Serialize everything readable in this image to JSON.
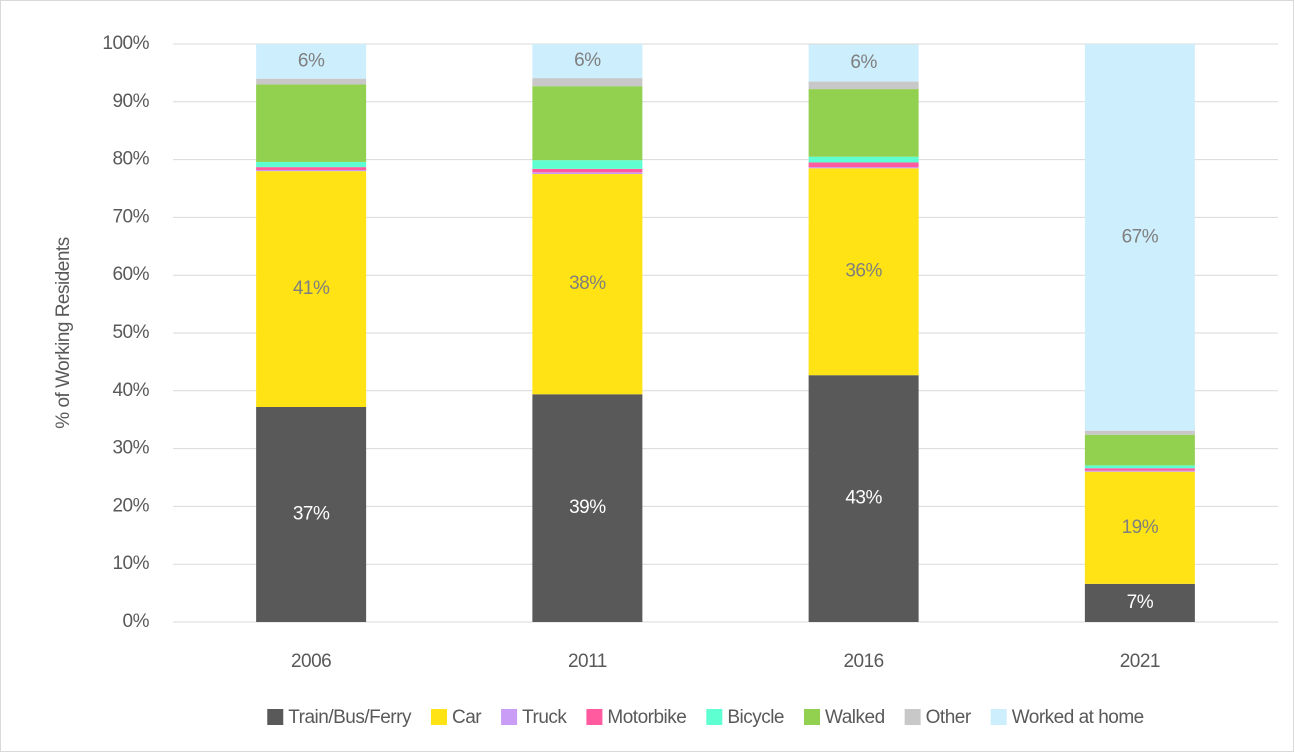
{
  "chart_data": {
    "type": "stacked_bar",
    "y_label": "% of Working Residents",
    "categories": [
      "2006",
      "2011",
      "2016",
      "2021"
    ],
    "series": [
      {
        "name": "Train/Bus/Ferry",
        "color": "#595959",
        "values": [
          37.2,
          39.4,
          42.7,
          6.6
        ],
        "value_labels": [
          "37%",
          "39%",
          "43%",
          "7%"
        ]
      },
      {
        "name": "Car",
        "color": "#ffe314",
        "values": [
          40.8,
          38.1,
          35.8,
          19.4
        ],
        "value_labels": [
          "41%",
          "38%",
          "36%",
          "19%"
        ]
      },
      {
        "name": "Truck",
        "color": "#c99cf5",
        "values": [
          0.2,
          0.3,
          0.2,
          0.2
        ]
      },
      {
        "name": "Motorbike",
        "color": "#ff5b9e",
        "values": [
          0.5,
          0.6,
          0.8,
          0.4
        ]
      },
      {
        "name": "Bicycle",
        "color": "#5effd0",
        "values": [
          0.9,
          1.5,
          1.0,
          0.5
        ]
      },
      {
        "name": "Walked",
        "color": "#92d050",
        "values": [
          13.4,
          12.8,
          11.7,
          5.3
        ]
      },
      {
        "name": "Other",
        "color": "#c8c8c8",
        "values": [
          1.0,
          1.4,
          1.3,
          0.7
        ]
      },
      {
        "name": "Worked at home",
        "color": "#cdeefc",
        "values": [
          6.0,
          5.9,
          6.4,
          66.9
        ],
        "value_labels": [
          "6%",
          "6%",
          "6%",
          "67%"
        ]
      }
    ],
    "ylim": [
      0,
      100
    ],
    "yticks": [
      {
        "value": 0,
        "label": "0%"
      },
      {
        "value": 10,
        "label": "10%"
      },
      {
        "value": 20,
        "label": "20%"
      },
      {
        "value": 30,
        "label": "30%"
      },
      {
        "value": 40,
        "label": "40%"
      },
      {
        "value": 50,
        "label": "50%"
      },
      {
        "value": 60,
        "label": "60%"
      },
      {
        "value": 70,
        "label": "70%"
      },
      {
        "value": 80,
        "label": "80%"
      },
      {
        "value": 90,
        "label": "90%"
      },
      {
        "value": 100,
        "label": "100%"
      }
    ],
    "grid": true,
    "legend": "bottom"
  }
}
